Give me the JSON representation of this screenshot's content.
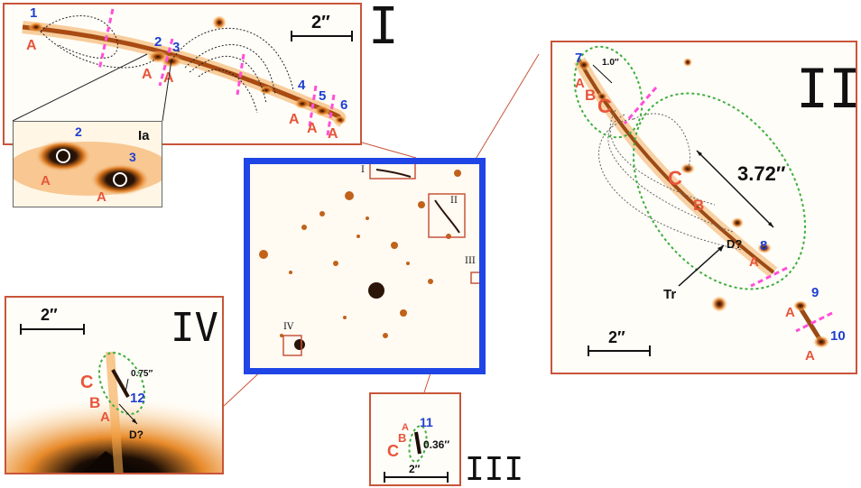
{
  "panels": {
    "I": {
      "label": "I",
      "scale": "2″"
    },
    "Ia": {
      "label": "Ia"
    },
    "II": {
      "label": "II",
      "scale": "2″",
      "separation": "3.72″",
      "small_sep": "1.0″",
      "tr": "Tr",
      "d": "D?"
    },
    "III": {
      "label": "III",
      "scale": "2″",
      "sep": "0.36″"
    },
    "IV": {
      "label": "IV",
      "scale": "2″",
      "sep": "0.75″",
      "d": "D?"
    },
    "center": {
      "tag_I": "I",
      "tag_II": "II",
      "tag_III": "III",
      "tag_IV": "IV"
    }
  },
  "images": {
    "n1": "1",
    "n2": "2",
    "n3": "3",
    "n4": "4",
    "n5": "5",
    "n6": "6",
    "n7": "7",
    "n8": "8",
    "n9": "9",
    "n10": "10",
    "n11": "11",
    "n12": "12",
    "A": "A",
    "B": "B",
    "C": "C"
  },
  "colors": {
    "frame": "#c8553a",
    "center_frame": "#1f45e6",
    "image_id": "#1f3fd0",
    "letter": "#e8553a",
    "critical_curve": "#ff4fd8",
    "ellipse": "#3fae3f"
  }
}
